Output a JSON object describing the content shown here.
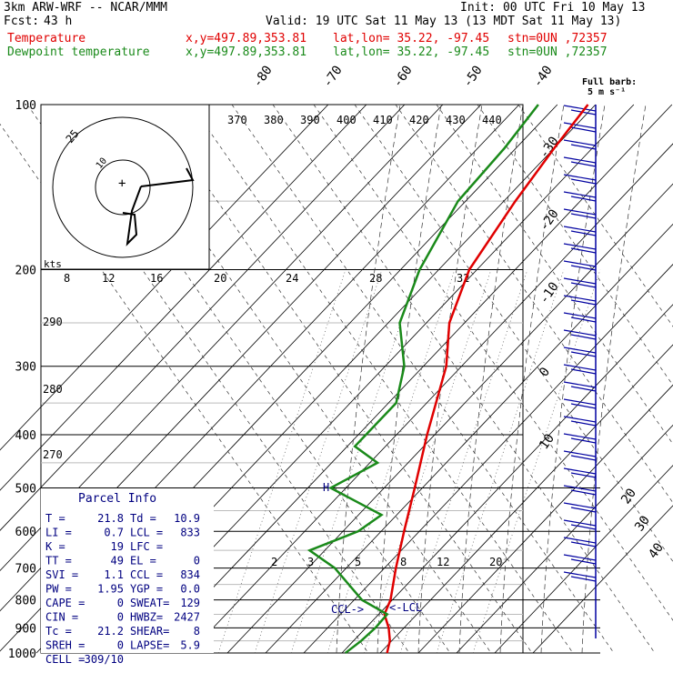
{
  "header": {
    "model": "3km ARW-WRF -- NCAR/MMM",
    "init": "Init: 00 UTC Fri 10 May 13",
    "fcst_label": "Fcst:",
    "fcst_value": "43 h",
    "valid": "Valid: 19 UTC Sat 11 May 13 (13 MDT Sat 11 May 13)",
    "temp_label": "Temperature",
    "dew_label": "Dewpoint temperature",
    "xy": "x,y=497.89,353.81",
    "latlon": "lat,lon= 35.22, -97.45",
    "stn": "stn=0UN ,72357",
    "barb_title": "Full barb:",
    "barb_unit": "5 m s⁻¹"
  },
  "colors": {
    "temperature": "#e00000",
    "dewpoint": "#1a8a1a",
    "parcel": "#000080",
    "wind": "#0000a0"
  },
  "hodograph": {
    "rings": [
      "25",
      "10"
    ],
    "units": "kts"
  },
  "chart_data": {
    "type": "line",
    "title": "",
    "xlabel": "",
    "ylabel": "",
    "pressure_axis": [
      100,
      200,
      300,
      400,
      500,
      600,
      700,
      800,
      900,
      1000
    ],
    "isotherm_labels": [
      "-80",
      "-70",
      "-60",
      "-50",
      "-40",
      "-30",
      "-20",
      "-10",
      "0",
      "10",
      "20",
      "30",
      "40"
    ],
    "theta_e_labels": [
      "370",
      "380",
      "390",
      "400",
      "410",
      "420",
      "430",
      "440"
    ],
    "theta_labels": [
      "290",
      "280",
      "270"
    ],
    "mixing_ratio_upper": [
      "8",
      "12",
      "16",
      "20",
      "24",
      "28",
      "32"
    ],
    "mixing_ratio_lower": [
      "2",
      "3",
      "5",
      "8",
      "12",
      "20"
    ],
    "series": [
      {
        "name": "Temperature",
        "points": [
          [
            1000,
            21.8
          ],
          [
            950,
            19.5
          ],
          [
            900,
            16
          ],
          [
            850,
            11.5
          ],
          [
            800,
            9.5
          ],
          [
            700,
            3
          ],
          [
            600,
            -4
          ],
          [
            500,
            -12
          ],
          [
            400,
            -22
          ],
          [
            300,
            -34
          ],
          [
            250,
            -44
          ],
          [
            200,
            -52
          ],
          [
            150,
            -57
          ],
          [
            120,
            -60
          ],
          [
            100,
            -62
          ]
        ]
      },
      {
        "name": "Dewpoint temperature",
        "points": [
          [
            1000,
            10.9
          ],
          [
            950,
            12
          ],
          [
            900,
            12.5
          ],
          [
            850,
            12.2
          ],
          [
            800,
            2
          ],
          [
            700,
            -13
          ],
          [
            650,
            -24
          ],
          [
            600,
            -16
          ],
          [
            560,
            -14
          ],
          [
            500,
            -34
          ],
          [
            450,
            -28
          ],
          [
            420,
            -38
          ],
          [
            400,
            -38
          ],
          [
            350,
            -38
          ],
          [
            300,
            -45
          ],
          [
            250,
            -57
          ],
          [
            200,
            -65
          ],
          [
            150,
            -72
          ],
          [
            120,
            -73
          ],
          [
            100,
            -75
          ]
        ]
      }
    ],
    "parcel_info": {
      "title": "Parcel Info",
      "rows": [
        [
          "T   =",
          "21.8",
          "Td =",
          "10.9"
        ],
        [
          "LI  =",
          "0.7",
          "LCL =",
          "833"
        ],
        [
          "K   =",
          "19",
          "LFC =",
          ""
        ],
        [
          "TT  =",
          "49",
          "EL  =",
          "0"
        ],
        [
          "SVI =",
          "1.1",
          "CCL =",
          "834"
        ],
        [
          "PW  =",
          "1.95",
          "YGP =",
          "0.0"
        ],
        [
          "CAPE =",
          "0",
          "SWEAT=",
          "129"
        ],
        [
          "CIN =",
          "0",
          "HWBZ=",
          "2427"
        ],
        [
          "Tc  =",
          "21.2",
          "SHEAR=",
          "8"
        ],
        [
          "SREH =",
          "0",
          "LAPSE=",
          "5.9"
        ],
        [
          "CELL =",
          "309/10",
          "",
          ""
        ]
      ]
    },
    "annotations": [
      "CCL->",
      "<-LCL",
      "H"
    ]
  }
}
